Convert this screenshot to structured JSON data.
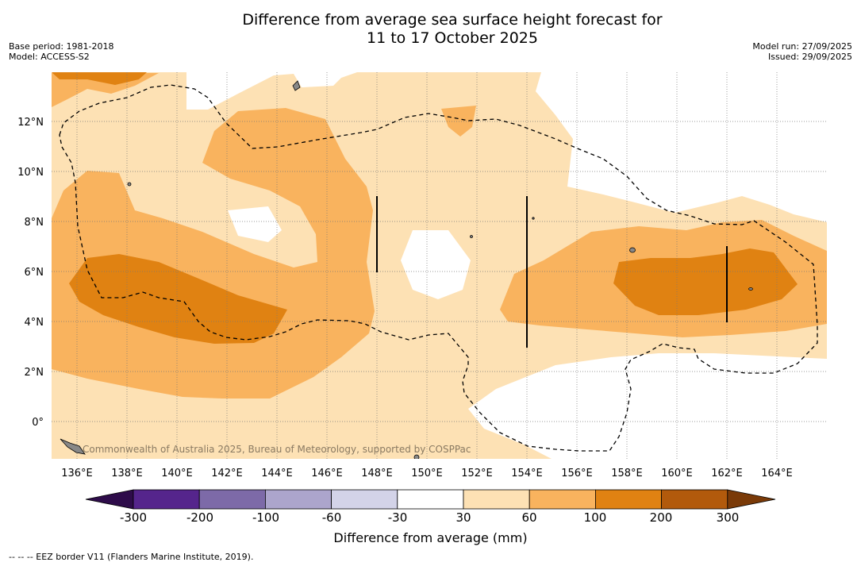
{
  "title": {
    "line1": "Difference from average sea surface height forecast for",
    "line2": "11 to 17 October 2025"
  },
  "meta_left": {
    "base_period": "Base period: 1981-2018",
    "model": "Model: ACCESS-S2"
  },
  "meta_right": {
    "model_run": "Model run: 27/09/2025",
    "issued": "Issued: 29/09/2025"
  },
  "map": {
    "lon_labels": [
      "136°E",
      "138°E",
      "140°E",
      "142°E",
      "144°E",
      "146°E",
      "148°E",
      "150°E",
      "152°E",
      "154°E",
      "156°E",
      "158°E",
      "160°E",
      "162°E",
      "164°E"
    ],
    "lat_labels": [
      "12°N",
      "10°N",
      "8°N",
      "6°N",
      "4°N",
      "2°N",
      "0°"
    ],
    "copyright": "Commonwealth of Australia 2025, Bureau of Meteorology, supported by COSPPac"
  },
  "colorbar": {
    "ticks": [
      "-300",
      "-200",
      "-100",
      "-60",
      "-30",
      "30",
      "60",
      "100",
      "200",
      "300"
    ],
    "colors": [
      "#2e0c4a",
      "#55258c",
      "#7d6aa8",
      "#aca5cc",
      "#d3d3e8",
      "#ffffff",
      "#fde1b4",
      "#f9b35e",
      "#e08212",
      "#b25a0c",
      "#7a3a08"
    ],
    "title": "Difference from average (mm)"
  },
  "footnote": "--  --  -- EEZ border V11 (Flanders Marine Institute, 2019)."
}
